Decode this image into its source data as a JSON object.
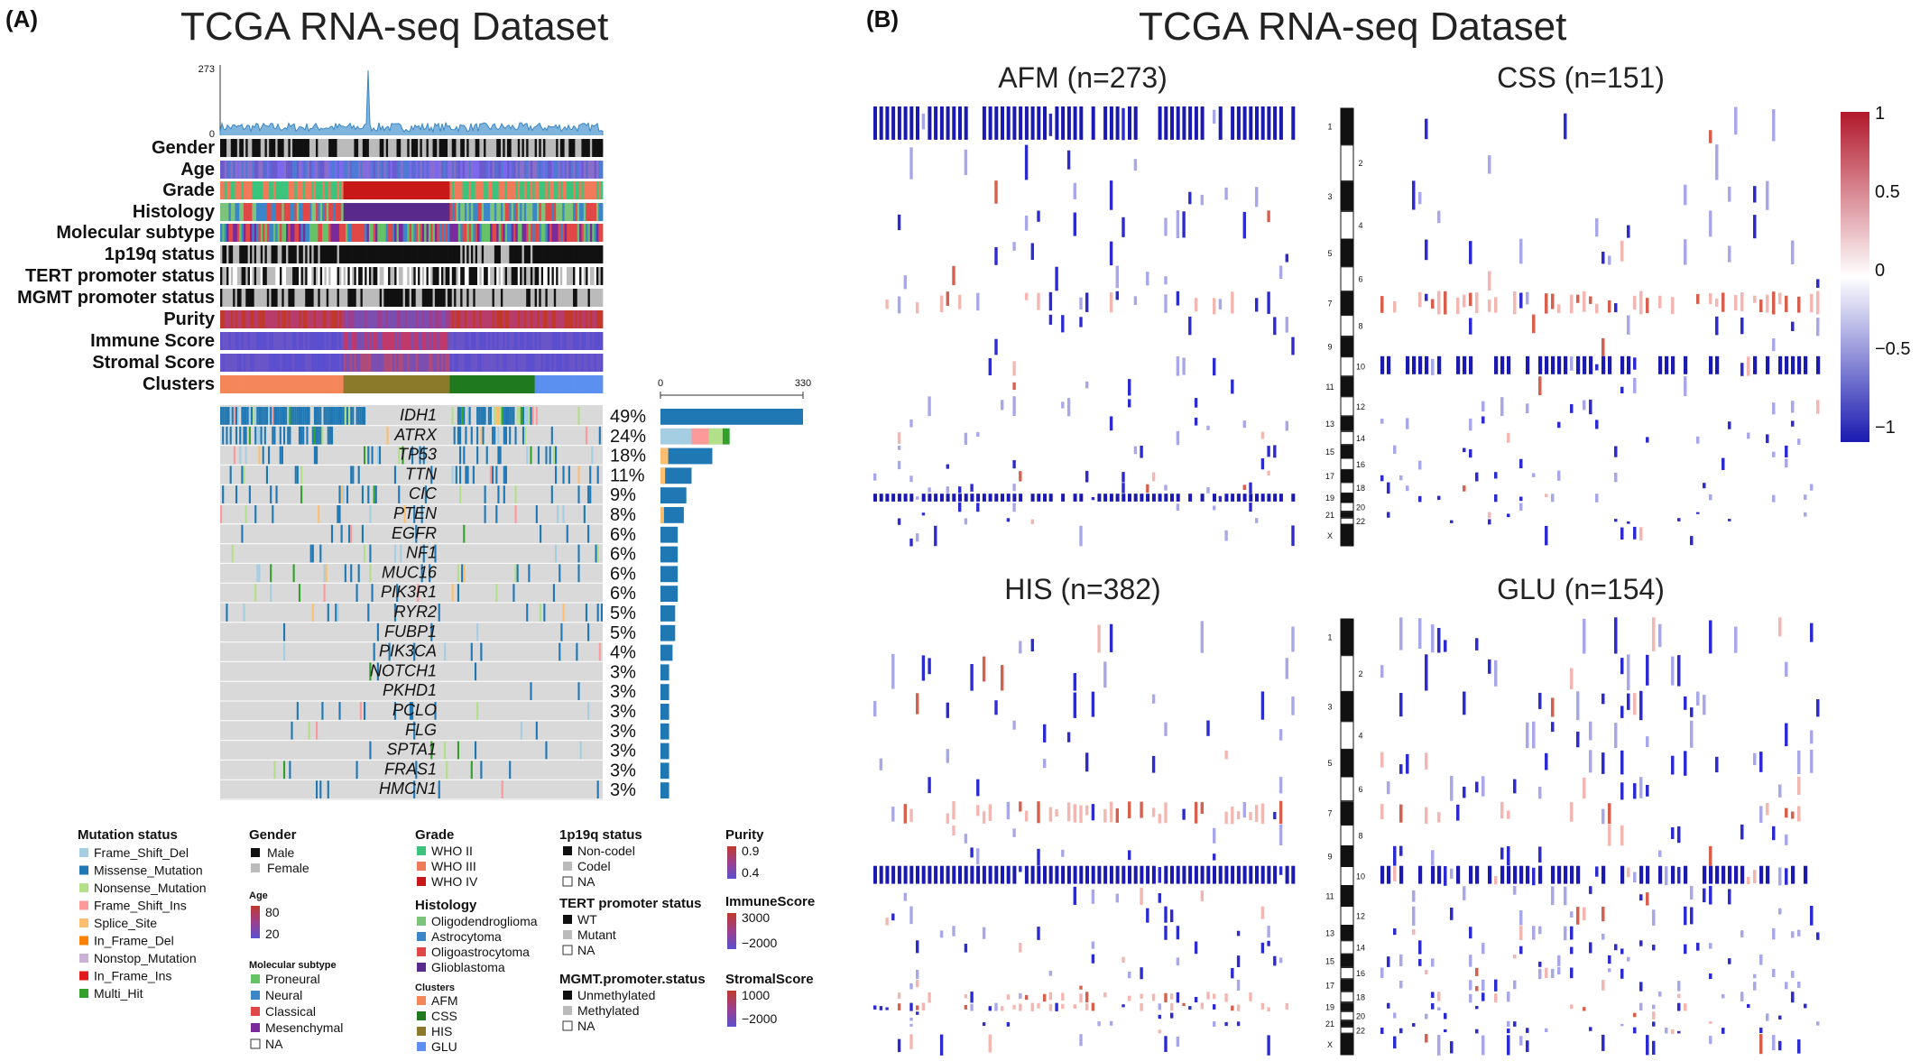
{
  "panel_a": {
    "label": "(A)",
    "title": "TCGA RNA-seq Dataset",
    "tmb_axis_max": "273",
    "tmb_axis_min": "0",
    "track_labels": [
      "Gender",
      "Age",
      "Grade",
      "Histology",
      "Molecular subtype",
      "1p19q status",
      "TERT promoter status",
      "MGMT promoter status",
      "Purity",
      "Immune Score",
      "Stromal Score",
      "Clusters"
    ],
    "bar_axis_min": "0",
    "bar_axis_max": "330",
    "genes": [
      "IDH1",
      "ATRX",
      "TP53",
      "TTN",
      "CIC",
      "PTEN",
      "EGFR",
      "NF1",
      "MUC16",
      "PIK3R1",
      "RYR2",
      "FUBP1",
      "PIK3CA",
      "NOTCH1",
      "PKHD1",
      "PCLO",
      "FLG",
      "SPTA1",
      "FRAS1",
      "HMCN1"
    ],
    "percents": [
      "49%",
      "24%",
      "18%",
      "11%",
      "9%",
      "8%",
      "6%",
      "6%",
      "6%",
      "6%",
      "5%",
      "5%",
      "4%",
      "3%",
      "3%",
      "3%",
      "3%",
      "3%",
      "3%",
      "3%"
    ]
  },
  "chart_data": {
    "type": "bar",
    "categories": [
      "IDH1",
      "ATRX",
      "TP53",
      "TTN",
      "CIC",
      "PTEN",
      "EGFR",
      "NF1",
      "MUC16",
      "PIK3R1",
      "RYR2",
      "FUBP1",
      "PIK3CA",
      "NOTCH1",
      "PKHD1",
      "PCLO",
      "FLG",
      "SPTA1",
      "FRAS1",
      "HMCN1"
    ],
    "values": [
      330,
      160,
      120,
      72,
      60,
      54,
      40,
      40,
      40,
      40,
      34,
      34,
      28,
      20,
      20,
      20,
      20,
      20,
      20,
      20
    ],
    "xlim": [
      0,
      330
    ]
  },
  "legend": {
    "mutation": {
      "title": "Mutation status",
      "items": [
        "Frame_Shift_Del",
        "Missense_Mutation",
        "Nonsense_Mutation",
        "Frame_Shift_Ins",
        "Splice_Site",
        "In_Frame_Del",
        "Nonstop_Mutation",
        "In_Frame_Ins",
        "Multi_Hit"
      ],
      "colors": [
        "#a6cee3",
        "#1f78b4",
        "#b2df8a",
        "#fb9a99",
        "#fdbf6f",
        "#ff7f00",
        "#cab2d6",
        "#e31a1c",
        "#33a02c"
      ]
    },
    "gender": {
      "title": "Gender",
      "items": [
        "Male",
        "Female"
      ],
      "colors": [
        "#111111",
        "#bbbbbb"
      ]
    },
    "age": {
      "title": "Age",
      "max": "80",
      "min": "20"
    },
    "subtype": {
      "title": "Molecular subtype",
      "items": [
        "Proneural",
        "Neural",
        "Classical",
        "Mesenchymal",
        "NA"
      ],
      "colors": [
        "#66c266",
        "#3a86c8",
        "#e04848",
        "#7a2a9a",
        "#ffffff"
      ]
    },
    "grade": {
      "title": "Grade",
      "items": [
        "WHO II",
        "WHO III",
        "WHO IV"
      ],
      "colors": [
        "#3cc47c",
        "#f07a5a",
        "#c81818"
      ]
    },
    "histology": {
      "title": "Histology",
      "items": [
        "Oligodendroglioma",
        "Astrocytoma",
        "Oligoastrocytoma",
        "Glioblastoma"
      ],
      "colors": [
        "#7cc47c",
        "#3a86c8",
        "#e04848",
        "#5a2a8a"
      ]
    },
    "clusters": {
      "title": "Clusters",
      "items": [
        "AFM",
        "CSS",
        "HIS",
        "GLU"
      ],
      "colors": [
        "#f4875a",
        "#1f7a1f",
        "#8a7a2a",
        "#5b8ff0"
      ]
    },
    "p1p19q": {
      "title": "1p19q status",
      "items": [
        "Non-codel",
        "Codel",
        "NA"
      ],
      "colors": [
        "#111111",
        "#bbbbbb",
        "#ffffff"
      ]
    },
    "tert": {
      "title": "TERT promoter status",
      "items": [
        "WT",
        "Mutant",
        "NA"
      ],
      "colors": [
        "#111111",
        "#bbbbbb",
        "#ffffff"
      ]
    },
    "mgmt": {
      "title": "MGMT.promoter.status",
      "items": [
        "Unmethylated",
        "Methylated",
        "NA"
      ],
      "colors": [
        "#111111",
        "#bbbbbb",
        "#ffffff"
      ]
    },
    "purity": {
      "title": "Purity",
      "max": "0.9",
      "min": "0.4"
    },
    "immune": {
      "title": "ImmuneScore",
      "max": "3000",
      "min": "−2000"
    },
    "stromal": {
      "title": "StromalScore",
      "max": "1000",
      "min": "−2000"
    }
  },
  "panel_b": {
    "label": "(B)",
    "title": "TCGA RNA-seq Dataset",
    "heatmaps": [
      {
        "title": "AFM (n=273)"
      },
      {
        "title": "CSS (n=151)"
      },
      {
        "title": "HIS (n=382)"
      },
      {
        "title": "GLU (n=154)"
      }
    ],
    "chromosomes": [
      "1",
      "2",
      "3",
      "4",
      "5",
      "6",
      "7",
      "8",
      "9",
      "10",
      "11",
      "12",
      "13",
      "14",
      "15",
      "16",
      "17",
      "18",
      "19",
      "20",
      "21",
      "22",
      "X"
    ],
    "colorbar": {
      "ticks": [
        "1",
        "0.5",
        "0",
        "−0.5",
        "−1"
      ],
      "colors": [
        "#b2182b",
        "#ffffff",
        "#1a1ab0"
      ]
    }
  }
}
